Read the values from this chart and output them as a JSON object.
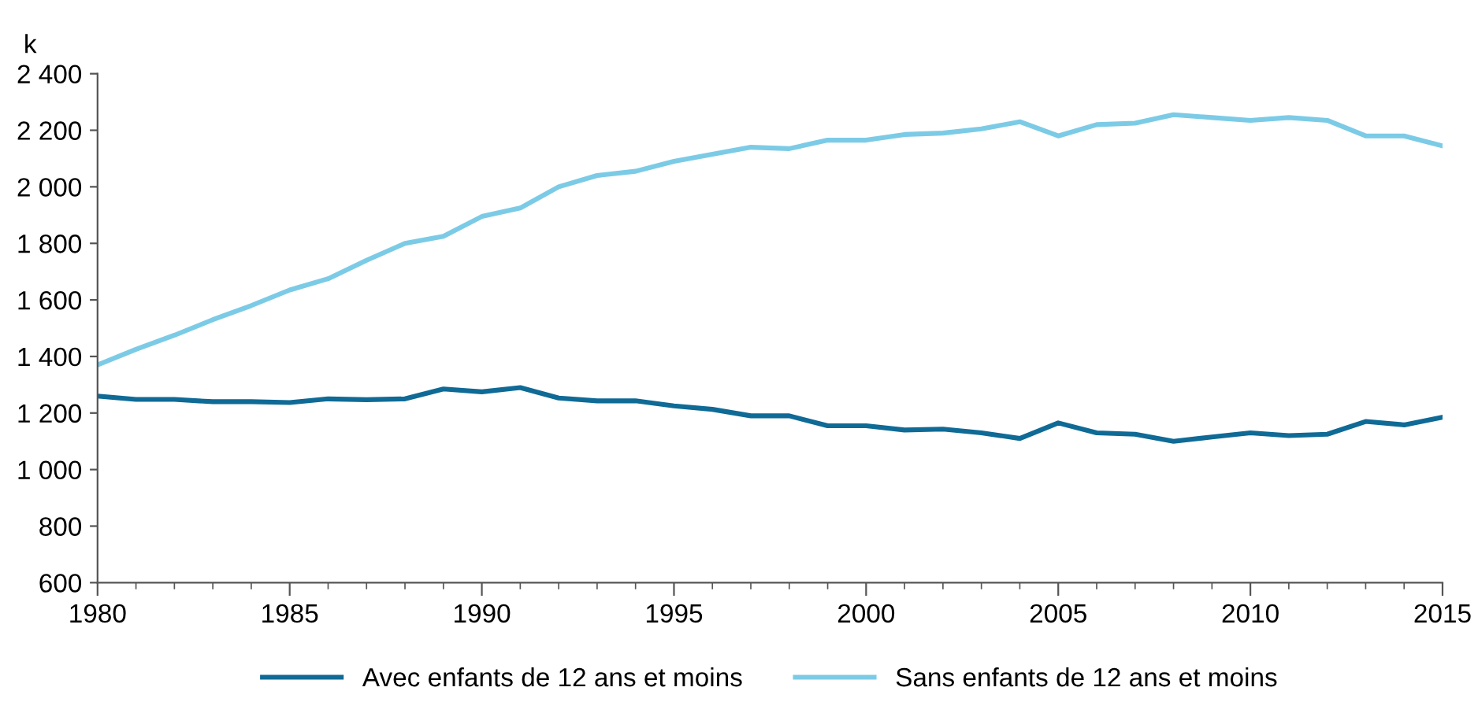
{
  "chart_data": {
    "type": "line",
    "ylabel": "k",
    "x": [
      1980,
      1981,
      1982,
      1983,
      1984,
      1985,
      1986,
      1987,
      1988,
      1989,
      1990,
      1991,
      1992,
      1993,
      1994,
      1995,
      1996,
      1997,
      1998,
      1999,
      2000,
      2001,
      2002,
      2003,
      2004,
      2005,
      2006,
      2007,
      2008,
      2009,
      2010,
      2011,
      2012,
      2013,
      2014,
      2015
    ],
    "series": [
      {
        "name": "Avec enfants de 12 ans et moins",
        "color": "#0f6a96",
        "values": [
          1260,
          1248,
          1248,
          1240,
          1240,
          1237,
          1250,
          1247,
          1250,
          1285,
          1275,
          1290,
          1253,
          1243,
          1243,
          1225,
          1213,
          1190,
          1190,
          1155,
          1155,
          1140,
          1143,
          1130,
          1110,
          1165,
          1130,
          1125,
          1100,
          1115,
          1130,
          1120,
          1125,
          1170,
          1158,
          1185
        ]
      },
      {
        "name": "Sans enfants de 12 ans et moins",
        "color": "#7ccbe6",
        "values": [
          1370,
          1425,
          1475,
          1530,
          1580,
          1635,
          1675,
          1740,
          1800,
          1825,
          1895,
          1925,
          2000,
          2040,
          2055,
          2090,
          2115,
          2140,
          2135,
          2165,
          2165,
          2185,
          2190,
          2205,
          2230,
          2180,
          2220,
          2225,
          2255,
          2245,
          2235,
          2245,
          2235,
          2180,
          2180,
          2145
        ]
      }
    ],
    "xlim": [
      1980,
      2015
    ],
    "xticks": [
      1980,
      1985,
      1990,
      1995,
      2000,
      2005,
      2010,
      2015
    ],
    "ylim": [
      600,
      2400
    ],
    "yticks": [
      {
        "value": 600,
        "label": "600"
      },
      {
        "value": 800,
        "label": "800"
      },
      {
        "value": 1000,
        "label": "1 000"
      },
      {
        "value": 1200,
        "label": "1 200"
      },
      {
        "value": 1400,
        "label": "1 400"
      },
      {
        "value": 1600,
        "label": "1 600"
      },
      {
        "value": 1800,
        "label": "1 800"
      },
      {
        "value": 2000,
        "label": "2 000"
      },
      {
        "value": 2200,
        "label": "2 200"
      },
      {
        "value": 2400,
        "label": "2 400"
      }
    ],
    "grid": false,
    "legend": "bottom",
    "marker": "none",
    "line_style": "solid"
  }
}
